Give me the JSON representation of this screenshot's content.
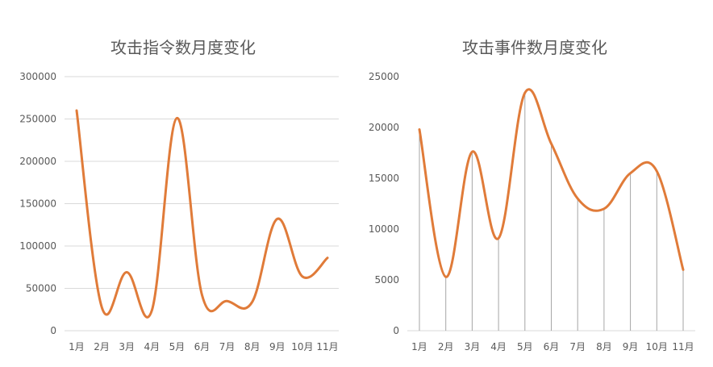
{
  "chart_data": [
    {
      "type": "line",
      "title": "攻击指令数月度变化",
      "categories": [
        "1月",
        "2月",
        "3月",
        "4月",
        "5月",
        "6月",
        "7月",
        "8月",
        "9月",
        "10月",
        "11月"
      ],
      "values": [
        260000,
        28000,
        69000,
        24000,
        251000,
        42000,
        35000,
        34000,
        132000,
        64000,
        86000
      ],
      "ylim": [
        0,
        300000
      ],
      "yticks": [
        "0",
        "50000",
        "100000",
        "150000",
        "200000",
        "250000",
        "300000"
      ],
      "grid": true,
      "smooth": true,
      "series_color": "#e07b39"
    },
    {
      "type": "line",
      "title": "攻击事件数月度变化",
      "categories": [
        "1月",
        "2月",
        "3月",
        "4月",
        "5月",
        "6月",
        "7月",
        "8月",
        "9月",
        "10月",
        "11月"
      ],
      "values": [
        19800,
        5300,
        17600,
        9100,
        23400,
        18400,
        13000,
        12000,
        15500,
        15700,
        6000
      ],
      "ylim": [
        0,
        25000
      ],
      "yticks": [
        "0",
        "5000",
        "10000",
        "15000",
        "20000",
        "25000"
      ],
      "grid": false,
      "drop_lines": true,
      "smooth": true,
      "series_color": "#e07b39"
    }
  ]
}
